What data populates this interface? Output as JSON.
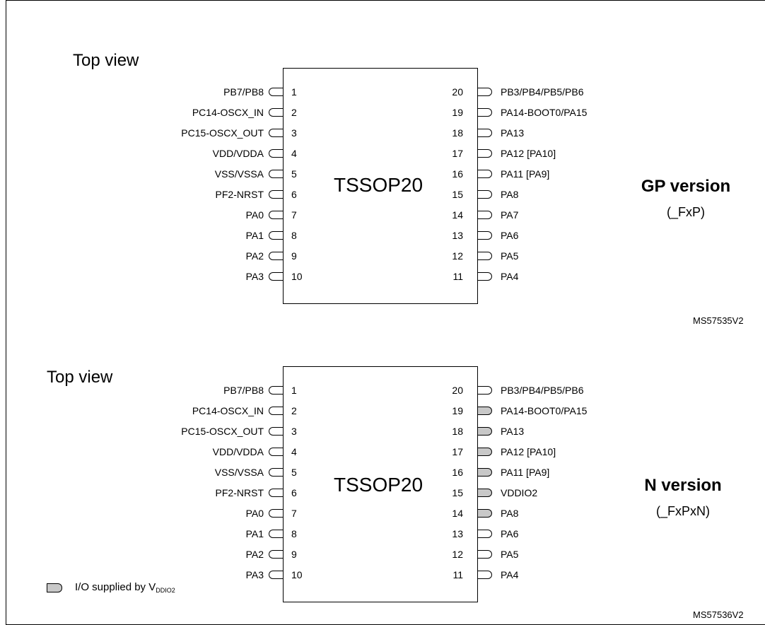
{
  "packages": [
    {
      "top_view_label": "Top view",
      "package_name": "TSSOP20",
      "version_title": "GP version",
      "version_suffix": "(_FxP)",
      "reference": "MS57535V2",
      "left_pins": [
        {
          "num": "1",
          "name": "PB7/PB8"
        },
        {
          "num": "2",
          "name": "PC14-OSCX_IN"
        },
        {
          "num": "3",
          "name": "PC15-OSCX_OUT"
        },
        {
          "num": "4",
          "name": "VDD/VDDA"
        },
        {
          "num": "5",
          "name": "VSS/VSSA"
        },
        {
          "num": "6",
          "name": "PF2-NRST"
        },
        {
          "num": "7",
          "name": "PA0"
        },
        {
          "num": "8",
          "name": "PA1"
        },
        {
          "num": "9",
          "name": "PA2"
        },
        {
          "num": "10",
          "name": "PA3"
        }
      ],
      "right_pins": [
        {
          "num": "20",
          "name": "PB3/PB4/PB5/PB6",
          "vddio2": false
        },
        {
          "num": "19",
          "name": "PA14-BOOT0/PA15",
          "vddio2": false
        },
        {
          "num": "18",
          "name": "PA13",
          "vddio2": false
        },
        {
          "num": "17",
          "name": "PA12 [PA10]",
          "vddio2": false
        },
        {
          "num": "16",
          "name": "PA11 [PA9]",
          "vddio2": false
        },
        {
          "num": "15",
          "name": "PA8",
          "vddio2": false
        },
        {
          "num": "14",
          "name": "PA7",
          "vddio2": false
        },
        {
          "num": "13",
          "name": "PA6",
          "vddio2": false
        },
        {
          "num": "12",
          "name": "PA5",
          "vddio2": false
        },
        {
          "num": "11",
          "name": "PA4",
          "vddio2": false
        }
      ]
    },
    {
      "top_view_label": "Top view",
      "package_name": "TSSOP20",
      "version_title": "N  version",
      "version_suffix": "(_FxPxN)",
      "reference": "MS57536V2",
      "left_pins": [
        {
          "num": "1",
          "name": "PB7/PB8"
        },
        {
          "num": "2",
          "name": "PC14-OSCX_IN"
        },
        {
          "num": "3",
          "name": "PC15-OSCX_OUT"
        },
        {
          "num": "4",
          "name": "VDD/VDDA"
        },
        {
          "num": "5",
          "name": "VSS/VSSA"
        },
        {
          "num": "6",
          "name": "PF2-NRST"
        },
        {
          "num": "7",
          "name": "PA0"
        },
        {
          "num": "8",
          "name": "PA1"
        },
        {
          "num": "9",
          "name": "PA2"
        },
        {
          "num": "10",
          "name": "PA3"
        }
      ],
      "right_pins": [
        {
          "num": "20",
          "name": "PB3/PB4/PB5/PB6",
          "vddio2": false
        },
        {
          "num": "19",
          "name": "PA14-BOOT0/PA15",
          "vddio2": true
        },
        {
          "num": "18",
          "name": "PA13",
          "vddio2": true
        },
        {
          "num": "17",
          "name": "PA12 [PA10]",
          "vddio2": true
        },
        {
          "num": "16",
          "name": "PA11 [PA9]",
          "vddio2": true
        },
        {
          "num": "15",
          "name": "VDDIO2",
          "vddio2": true
        },
        {
          "num": "14",
          "name": "PA8",
          "vddio2": true
        },
        {
          "num": "13",
          "name": "PA6",
          "vddio2": false
        },
        {
          "num": "12",
          "name": "PA5",
          "vddio2": false
        },
        {
          "num": "11",
          "name": "PA4",
          "vddio2": false
        }
      ]
    }
  ],
  "legend": {
    "text_prefix": "I/O supplied by V",
    "text_subscript": "DDIO2"
  },
  "colors": {
    "vddio2_fill": "#c8c8c8",
    "pad_fill": "#ffffff",
    "line": "#000000"
  }
}
